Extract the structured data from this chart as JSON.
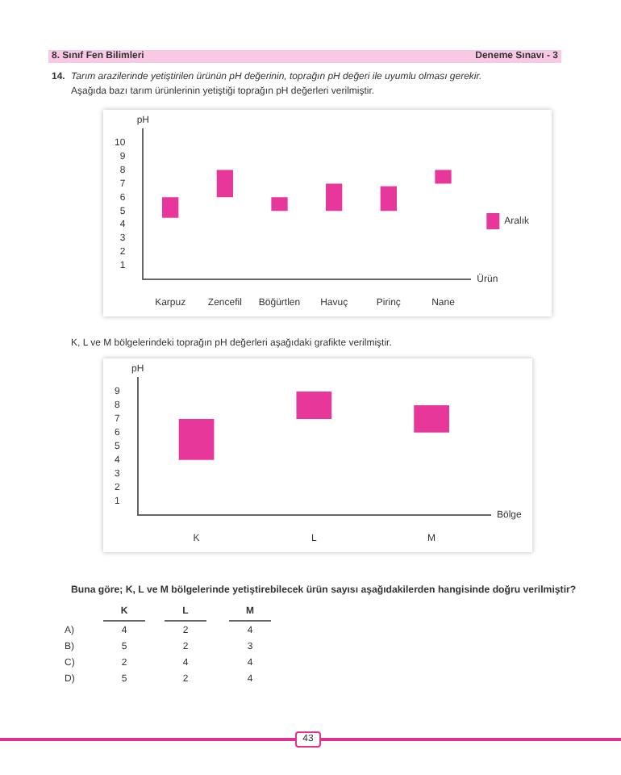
{
  "chart_data": [
    {
      "type": "bar",
      "title": "Tarım arazilerinde yetiştirilen ürünün pH değerinin, toprağın pH değeri ile uyumlu olması gerekir.",
      "subtitle": "Aşağıda bazı tarım ürünlerinin yetiştiği toprağın pH değerleri verilmiştir.",
      "annotations": [
        "8. Sınıf Fen Bilimleri",
        "Deneme Sınavı - 3",
        "14."
      ],
      "xlabel": "Ürün",
      "ylabel": "pH",
      "categories": [
        "Karpuz",
        "Zencefil",
        "Böğürtlen",
        "Havuç",
        "Pirinç",
        "Nane"
      ],
      "series": [
        {
          "name": "Aralık",
          "color": "#e8379a",
          "base": [
            4.5,
            6,
            5,
            5,
            5,
            7
          ],
          "values": [
            1.5,
            2,
            1,
            2,
            1.8,
            1
          ]
        }
      ],
      "ylim": [
        0,
        11
      ],
      "yticks": [
        1,
        2,
        3,
        4,
        5,
        6,
        7,
        8,
        9,
        10
      ],
      "legend": "right"
    },
    {
      "type": "bar",
      "title": "K, L ve M bölgelerindeki toprağın pH değerleri aşağıdaki grafikte verilmiştir.",
      "xlabel": "Bölge",
      "ylabel": "pH",
      "categories": [
        "K",
        "L",
        "M"
      ],
      "series": [
        {
          "color": "#e8379a",
          "base": [
            4,
            7,
            6
          ],
          "values": [
            3,
            2,
            2
          ]
        }
      ],
      "ylim": [
        0,
        10
      ],
      "yticks": [
        1,
        2,
        3,
        4,
        5,
        6,
        7,
        8,
        9
      ]
    },
    {
      "type": "other",
      "title": "Buna göre; K, L ve M bölgelerinde yetiştirebilecek ürün sayısı aşağıdakilerden hangisinde doğru verilmiştir?",
      "annotations": [
        "K",
        "L",
        "M",
        "A)",
        "4",
        "2",
        "4",
        "B)",
        "5",
        "2",
        "3",
        "C)",
        "2",
        "4",
        "4",
        "D)",
        "5",
        "2",
        "4",
        "43"
      ]
    }
  ]
}
